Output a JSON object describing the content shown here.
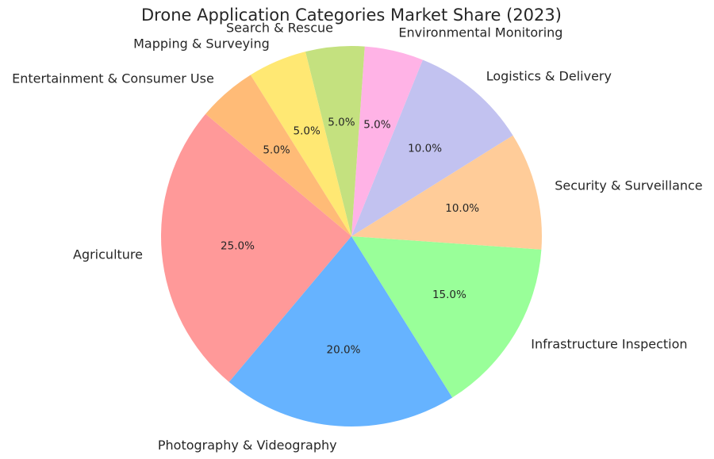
{
  "chart_data": {
    "type": "pie",
    "title": "Drone Application Categories Market Share (2023)",
    "categories": [
      "Agriculture",
      "Photography & Videography",
      "Infrastructure Inspection",
      "Security & Surveillance",
      "Logistics & Delivery",
      "Environmental Monitoring",
      "Search & Rescue",
      "Mapping & Surveying",
      "Entertainment & Consumer Use"
    ],
    "values": [
      25,
      20,
      15,
      10,
      10,
      5,
      5,
      5,
      5
    ],
    "percent_labels": [
      "25.0%",
      "20.0%",
      "15.0%",
      "10.0%",
      "10.0%",
      "5.0%",
      "5.0%",
      "5.0%",
      "5.0%"
    ],
    "colors": [
      "#ff9999",
      "#66b3ff",
      "#99ff99",
      "#ffcc99",
      "#c2c2f0",
      "#ffb3e6",
      "#c4e17f",
      "#ffe873",
      "#ffbb77"
    ],
    "start_angle_deg": 140,
    "direction": "counterclockwise",
    "legend": "none"
  }
}
